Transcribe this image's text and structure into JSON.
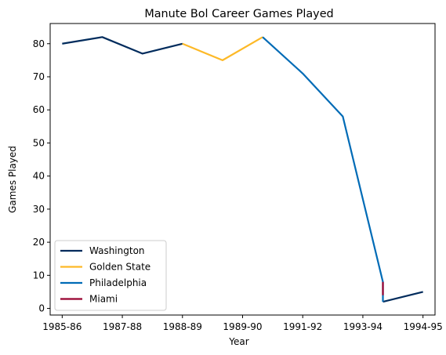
{
  "chart_data": {
    "type": "line",
    "title": "Manute Bol Career Games Played",
    "xlabel": "Year",
    "ylabel": "Games Played",
    "x_tick_labels": [
      "1985-86",
      "1987-88",
      "1988-89",
      "1989-90",
      "1991-92",
      "1993-94",
      "1994-95"
    ],
    "y_ticks": [
      0,
      10,
      20,
      30,
      40,
      50,
      60,
      70,
      80
    ],
    "xlim": [
      -0.3,
      9.3
    ],
    "ylim": [
      -2.0,
      86.1
    ],
    "grid": false,
    "legend_position": "lower-left",
    "series": [
      {
        "name": "Washington",
        "color": "#002b5c",
        "points": [
          [
            0,
            80
          ],
          [
            1,
            82
          ],
          [
            2,
            77
          ],
          [
            3,
            80
          ],
          [
            8,
            2
          ],
          [
            9,
            5
          ]
        ],
        "segments": [
          [
            0,
            1,
            2,
            3
          ],
          [
            4,
            5
          ]
        ]
      },
      {
        "name": "Golden State",
        "color": "#fdb927",
        "points": [
          [
            3,
            80
          ],
          [
            4,
            75
          ],
          [
            5,
            82
          ]
        ],
        "segments": [
          [
            0,
            1,
            2
          ]
        ]
      },
      {
        "name": "Philadelphia",
        "color": "#006bb6",
        "points": [
          [
            5,
            82
          ],
          [
            6,
            71
          ],
          [
            7,
            58
          ],
          [
            8,
            8
          ],
          [
            8,
            2
          ]
        ],
        "segments": [
          [
            0,
            1,
            2,
            3,
            4
          ]
        ]
      },
      {
        "name": "Miami",
        "color": "#98002e",
        "points": [
          [
            8,
            8
          ],
          [
            8,
            4
          ]
        ],
        "segments": [
          [
            0,
            1
          ]
        ]
      }
    ]
  }
}
